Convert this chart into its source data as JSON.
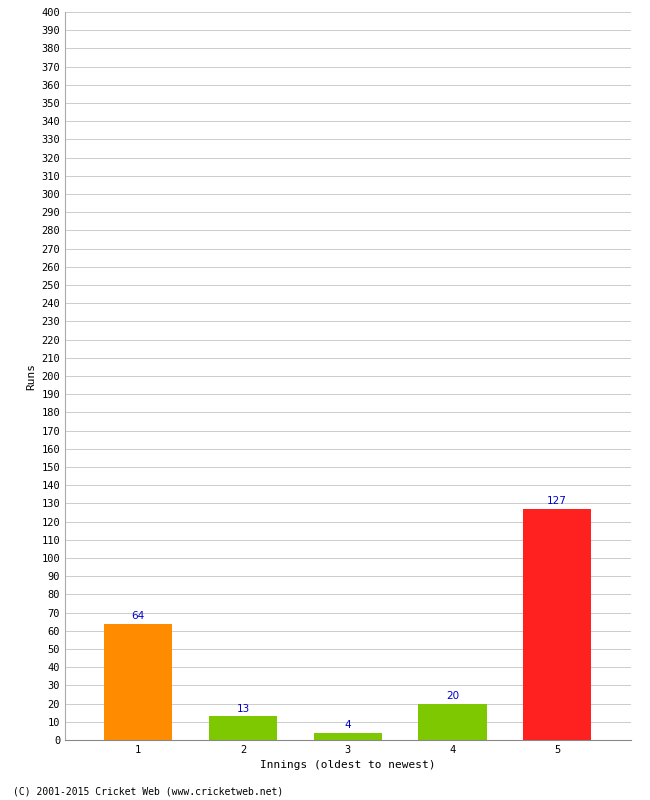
{
  "categories": [
    1,
    2,
    3,
    4,
    5
  ],
  "values": [
    64,
    13,
    4,
    20,
    127
  ],
  "bar_colors": [
    "#ff8c00",
    "#7dc800",
    "#7dc800",
    "#7dc800",
    "#ff2020"
  ],
  "xlabel": "Innings (oldest to newest)",
  "ylabel": "Runs",
  "ylim": [
    0,
    400
  ],
  "ytick_step": 10,
  "label_color": "#0000cc",
  "label_fontsize": 7.5,
  "axis_fontsize": 8,
  "tick_fontsize": 7.5,
  "background_color": "#ffffff",
  "grid_color": "#cccccc",
  "footer": "(C) 2001-2015 Cricket Web (www.cricketweb.net)",
  "bar_width": 0.65
}
